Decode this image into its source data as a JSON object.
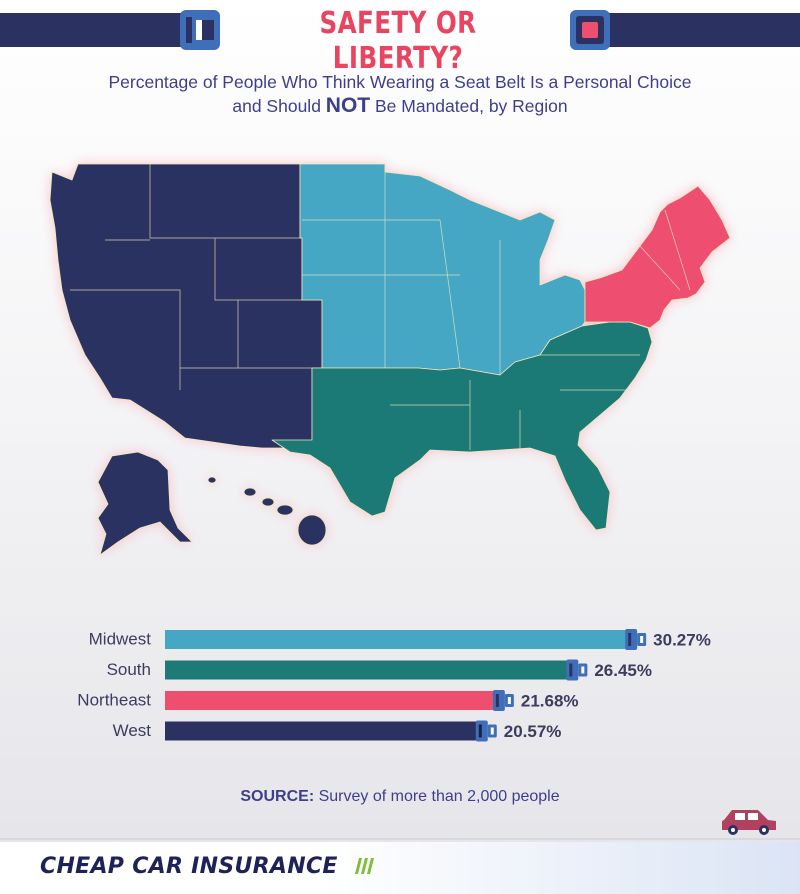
{
  "header": {
    "title": "SAFETY OR LIBERTY?",
    "subtitle_line1": "Percentage of People Who Think Wearing a Seat Belt Is a Personal Choice",
    "subtitle_line2_pre": "and Should ",
    "subtitle_line2_emph": "NOT",
    "subtitle_line2_post": " Be Mandated, by Region"
  },
  "colors": {
    "midwest": "#45a7c3",
    "south": "#1d7a76",
    "northeast": "#ee4f6f",
    "west": "#2b3262",
    "accent_title": "#e94460",
    "text": "#3d3f8e"
  },
  "map": {
    "regions": [
      "West",
      "Midwest",
      "South",
      "Northeast"
    ]
  },
  "chart_data": {
    "type": "bar",
    "orientation": "horizontal",
    "categories": [
      "Midwest",
      "South",
      "Northeast",
      "West"
    ],
    "values": [
      30.27,
      26.45,
      21.68,
      20.57
    ],
    "value_labels": [
      "30.27%",
      "26.45%",
      "21.68%",
      "20.57%"
    ],
    "colors": [
      "#45a7c3",
      "#1d7a76",
      "#ee4f6f",
      "#2b3262"
    ],
    "title": "SAFETY OR LIBERTY?",
    "xlabel": "",
    "ylabel": ""
  },
  "source": {
    "label": "SOURCE:",
    "text": " Survey of more than 2,000 people"
  },
  "footer": {
    "logo": "CHEAP CAR INSURANCE"
  }
}
